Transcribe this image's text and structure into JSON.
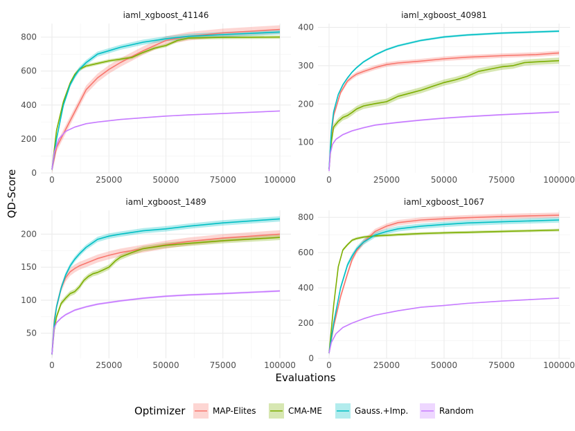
{
  "chart_data": {
    "type": "line",
    "ylabel": "QD-Score",
    "xlabel": "Evaluations",
    "legend": {
      "title": "Optimizer",
      "position": "bottom",
      "entries": [
        {
          "name": "MAP-Elites",
          "color": "#f8766d"
        },
        {
          "name": "CMA-ME",
          "color": "#7cae00"
        },
        {
          "name": "Gauss.+Imp.",
          "color": "#00bfc4"
        },
        {
          "name": "Random",
          "color": "#c77cff"
        }
      ]
    },
    "grid": true,
    "x_ticks": [
      0,
      25000,
      50000,
      75000,
      100000
    ],
    "x_tick_labels": [
      "0",
      "25000",
      "50000",
      "75000",
      "100000"
    ],
    "xlim": [
      0,
      100000
    ],
    "panels": [
      {
        "title": "iaml_xgboost_41146",
        "ylim": [
          0,
          880
        ],
        "y_ticks": [
          0,
          200,
          400,
          600,
          800
        ],
        "y_tick_labels": [
          "0",
          "200",
          "400",
          "600",
          "800"
        ],
        "series": [
          {
            "name": "MAP-Elites",
            "x": [
              0,
              2000,
              5000,
              10000,
              15000,
              20000,
              25000,
              30000,
              40000,
              50000,
              60000,
              75000,
              100000
            ],
            "y": [
              20,
              150,
              230,
              360,
              490,
              560,
              610,
              650,
              720,
              780,
              805,
              825,
              845
            ],
            "band": 25
          },
          {
            "name": "CMA-ME",
            "x": [
              0,
              2000,
              5000,
              8000,
              10000,
              12000,
              15000,
              20000,
              25000,
              30000,
              35000,
              40000,
              45000,
              50000,
              55000,
              60000,
              75000,
              100000
            ],
            "y": [
              20,
              250,
              420,
              530,
              580,
              610,
              630,
              645,
              660,
              670,
              680,
              710,
              735,
              750,
              780,
              795,
              798,
              800
            ],
            "band": 10
          },
          {
            "name": "Gauss.+Imp.",
            "x": [
              0,
              2000,
              5000,
              8000,
              10000,
              12000,
              15000,
              20000,
              25000,
              30000,
              40000,
              50000,
              60000,
              75000,
              100000
            ],
            "y": [
              20,
              200,
              400,
              520,
              570,
              610,
              650,
              700,
              720,
              740,
              770,
              790,
              805,
              815,
              830
            ],
            "band": 15
          },
          {
            "name": "Random",
            "x": [
              0,
              1000,
              3000,
              6000,
              10000,
              15000,
              20000,
              30000,
              40000,
              50000,
              60000,
              75000,
              100000
            ],
            "y": [
              20,
              120,
              200,
              245,
              270,
              290,
              300,
              315,
              325,
              335,
              342,
              350,
              365
            ],
            "band": 3
          }
        ]
      },
      {
        "title": "iaml_xgboost_40981",
        "ylim": [
          20,
          410
        ],
        "y_ticks": [
          100,
          200,
          300,
          400
        ],
        "y_tick_labels": [
          "100",
          "200",
          "300",
          "400"
        ],
        "series": [
          {
            "name": "MAP-Elites",
            "x": [
              0,
              1000,
              2000,
              5000,
              8000,
              10000,
              12000,
              15000,
              20000,
              25000,
              30000,
              40000,
              50000,
              60000,
              75000,
              90000,
              100000
            ],
            "y": [
              30,
              120,
              170,
              230,
              260,
              270,
              278,
              285,
              295,
              303,
              307,
              312,
              318,
              322,
              326,
              329,
              333
            ],
            "band": 6
          },
          {
            "name": "CMA-ME",
            "x": [
              0,
              1000,
              2000,
              4000,
              6000,
              8000,
              10000,
              12000,
              15000,
              20000,
              25000,
              30000,
              35000,
              40000,
              45000,
              50000,
              55000,
              60000,
              65000,
              70000,
              75000,
              80000,
              85000,
              90000,
              100000
            ],
            "y": [
              30,
              100,
              140,
              155,
              165,
              170,
              178,
              187,
              195,
              201,
              206,
              220,
              228,
              236,
              246,
              256,
              263,
              272,
              285,
              291,
              297,
              300,
              308,
              310,
              313
            ],
            "band": 8
          },
          {
            "name": "Gauss.+Imp.",
            "x": [
              0,
              1000,
              2000,
              4000,
              6000,
              8000,
              10000,
              12000,
              15000,
              20000,
              25000,
              30000,
              40000,
              50000,
              60000,
              75000,
              100000
            ],
            "y": [
              30,
              130,
              180,
              225,
              250,
              268,
              283,
              295,
              310,
              328,
              342,
              352,
              366,
              375,
              380,
              385,
              390
            ],
            "band": 3
          },
          {
            "name": "Random",
            "x": [
              0,
              500,
              1500,
              3000,
              6000,
              10000,
              15000,
              20000,
              30000,
              40000,
              50000,
              60000,
              75000,
              100000
            ],
            "y": [
              25,
              70,
              95,
              108,
              120,
              130,
              138,
              145,
              152,
              158,
              163,
              167,
              172,
              179
            ],
            "band": 2
          }
        ]
      },
      {
        "title": "iaml_xgboost_1489",
        "ylim": [
          12,
          236
        ],
        "y_ticks": [
          50,
          100,
          150,
          200
        ],
        "y_tick_labels": [
          "50",
          "100",
          "150",
          "200"
        ],
        "series": [
          {
            "name": "MAP-Elites",
            "x": [
              0,
              1000,
              2000,
              4000,
              6000,
              8000,
              10000,
              12000,
              15000,
              20000,
              25000,
              30000,
              40000,
              50000,
              60000,
              75000,
              100000
            ],
            "y": [
              18,
              70,
              90,
              118,
              134,
              143,
              148,
              152,
              156,
              163,
              168,
              172,
              178,
              184,
              189,
              194,
              200
            ],
            "band": 6
          },
          {
            "name": "CMA-ME",
            "x": [
              0,
              1000,
              2000,
              3000,
              4000,
              6000,
              8000,
              10000,
              12000,
              14000,
              16000,
              18000,
              20000,
              22000,
              25000,
              28000,
              30000,
              35000,
              40000,
              50000,
              60000,
              75000,
              100000
            ],
            "y": [
              18,
              55,
              75,
              85,
              95,
              103,
              110,
              113,
              120,
              130,
              136,
              140,
              142,
              145,
              150,
              160,
              165,
              172,
              178,
              183,
              186,
              190,
              195
            ],
            "band": 4
          },
          {
            "name": "Gauss.+Imp.",
            "x": [
              0,
              1000,
              2000,
              4000,
              6000,
              8000,
              10000,
              12000,
              15000,
              20000,
              25000,
              30000,
              40000,
              50000,
              60000,
              75000,
              100000
            ],
            "y": [
              18,
              65,
              90,
              118,
              138,
              152,
              162,
              170,
              180,
              192,
              197,
              200,
              205,
              208,
              212,
              217,
              223
            ],
            "band": 4
          },
          {
            "name": "Random",
            "x": [
              0,
              1000,
              2000,
              4000,
              6000,
              10000,
              15000,
              20000,
              30000,
              40000,
              50000,
              60000,
              75000,
              100000
            ],
            "y": [
              18,
              58,
              66,
              73,
              78,
              85,
              90,
              94,
              99,
              103,
              106,
              108,
              110,
              114
            ],
            "band": 1.5
          }
        ]
      },
      {
        "title": "iaml_xgboost_1067",
        "ylim": [
          0,
          840
        ],
        "y_ticks": [
          0,
          200,
          400,
          600,
          800
        ],
        "y_tick_labels": [
          "0",
          "200",
          "400",
          "600",
          "800"
        ],
        "series": [
          {
            "name": "MAP-Elites",
            "x": [
              0,
              2000,
              5000,
              8000,
              10000,
              12000,
              15000,
              20000,
              25000,
              30000,
              40000,
              50000,
              60000,
              75000,
              100000
            ],
            "y": [
              30,
              180,
              350,
              480,
              560,
              610,
              660,
              720,
              750,
              770,
              785,
              792,
              798,
              805,
              812
            ],
            "band": 15
          },
          {
            "name": "CMA-ME",
            "x": [
              0,
              2000,
              4000,
              6000,
              8000,
              10000,
              12000,
              15000,
              20000,
              25000,
              30000,
              40000,
              50000,
              60000,
              75000,
              100000
            ],
            "y": [
              30,
              300,
              520,
              615,
              645,
              670,
              680,
              688,
              695,
              698,
              702,
              708,
              712,
              715,
              720,
              728
            ],
            "band": 8
          },
          {
            "name": "Gauss.+Imp.",
            "x": [
              0,
              2000,
              5000,
              8000,
              10000,
              12000,
              15000,
              20000,
              25000,
              30000,
              40000,
              50000,
              60000,
              75000,
              100000
            ],
            "y": [
              30,
              200,
              400,
              530,
              580,
              620,
              660,
              700,
              720,
              735,
              750,
              760,
              768,
              775,
              785
            ],
            "band": 15
          },
          {
            "name": "Random",
            "x": [
              0,
              1000,
              3000,
              6000,
              10000,
              15000,
              20000,
              30000,
              40000,
              50000,
              60000,
              75000,
              100000
            ],
            "y": [
              30,
              90,
              140,
              175,
              200,
              225,
              245,
              270,
              290,
              300,
              312,
              325,
              342
            ],
            "band": 3
          }
        ]
      }
    ]
  }
}
